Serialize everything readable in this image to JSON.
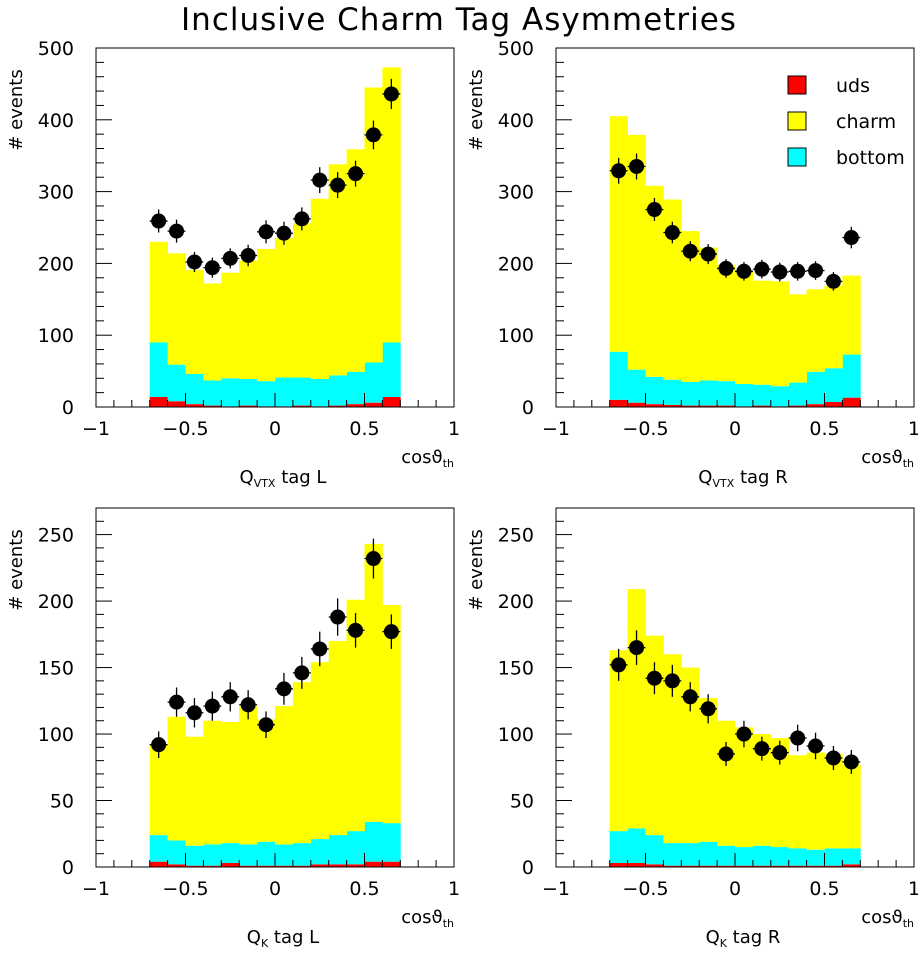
{
  "title": "Inclusive Charm Tag Asymmetries",
  "legend": {
    "items": [
      {
        "label": "uds",
        "color": "#ff0000"
      },
      {
        "label": "charm",
        "color": "#ffff00"
      },
      {
        "label": "bottom",
        "color": "#00ffff"
      }
    ]
  },
  "chart_data": [
    {
      "type": "bar",
      "title": "",
      "xlabel_main": "Q",
      "xlabel_sub": "VTX",
      "xlabel_tail": " tag L",
      "xaxis_label": "cosϑth",
      "ylabel": "# events",
      "xlim": [
        -1,
        1
      ],
      "ylim": [
        0,
        500
      ],
      "x_ticks": [
        "−1",
        "−0.5",
        "0",
        "0.5",
        "1"
      ],
      "y_ticks": [
        "0",
        "100",
        "200",
        "300",
        "400",
        "500"
      ],
      "bin_edges": [
        -0.7,
        -0.6,
        -0.5,
        -0.4,
        -0.3,
        -0.2,
        -0.1,
        0,
        0.1,
        0.2,
        0.3,
        0.4,
        0.5,
        0.6,
        0.7
      ],
      "series": [
        {
          "name": "uds",
          "values": [
            14,
            8,
            4,
            2,
            1,
            2,
            1,
            1,
            2,
            1,
            2,
            4,
            6,
            14
          ]
        },
        {
          "name": "bottom",
          "values": [
            76,
            51,
            42,
            35,
            39,
            37,
            35,
            40,
            39,
            38,
            42,
            45,
            56,
            76
          ]
        },
        {
          "name": "charm",
          "values": [
            140,
            155,
            145,
            135,
            147,
            165,
            184,
            194,
            215,
            251,
            294,
            310,
            383,
            383
          ]
        }
      ],
      "data_points": {
        "x": [
          -0.65,
          -0.55,
          -0.45,
          -0.35,
          -0.25,
          -0.15,
          -0.05,
          0.05,
          0.15,
          0.25,
          0.35,
          0.45,
          0.55,
          0.65
        ],
        "y": [
          259,
          245,
          202,
          194,
          207,
          211,
          244,
          242,
          262,
          316,
          309,
          325,
          379,
          436
        ],
        "err": [
          16,
          16,
          14,
          14,
          14,
          15,
          16,
          16,
          16,
          18,
          18,
          18,
          20,
          21
        ]
      }
    },
    {
      "type": "bar",
      "title": "",
      "xlabel_main": "Q",
      "xlabel_sub": "VTX",
      "xlabel_tail": " tag R",
      "xaxis_label": "cosϑth",
      "ylabel": "# events",
      "xlim": [
        -1,
        1
      ],
      "ylim": [
        0,
        500
      ],
      "x_ticks": [
        "−1",
        "−0.5",
        "0",
        "0.5",
        "1"
      ],
      "y_ticks": [
        "0",
        "100",
        "200",
        "300",
        "400",
        "500"
      ],
      "bin_edges": [
        -0.7,
        -0.6,
        -0.5,
        -0.4,
        -0.3,
        -0.2,
        -0.1,
        0,
        0.1,
        0.2,
        0.3,
        0.4,
        0.5,
        0.6,
        0.7
      ],
      "series": [
        {
          "name": "uds",
          "values": [
            10,
            6,
            4,
            3,
            2,
            2,
            2,
            1,
            2,
            1,
            2,
            4,
            7,
            13
          ]
        },
        {
          "name": "bottom",
          "values": [
            67,
            46,
            38,
            35,
            33,
            35,
            34,
            31,
            29,
            28,
            32,
            45,
            47,
            60
          ]
        },
        {
          "name": "charm",
          "values": [
            328,
            327,
            266,
            251,
            210,
            185,
            162,
            158,
            145,
            146,
            123,
            115,
            115,
            110
          ]
        }
      ],
      "data_points": {
        "x": [
          -0.65,
          -0.55,
          -0.45,
          -0.35,
          -0.25,
          -0.15,
          -0.05,
          0.05,
          0.15,
          0.25,
          0.35,
          0.45,
          0.55,
          0.65
        ],
        "y": [
          329,
          335,
          275,
          243,
          217,
          213,
          193,
          189,
          192,
          188,
          189,
          190,
          175,
          236
        ],
        "err": [
          18,
          18,
          16,
          15,
          14,
          14,
          13,
          13,
          13,
          13,
          13,
          13,
          13,
          15
        ]
      }
    },
    {
      "type": "bar",
      "title": "",
      "xlabel_main": "Q",
      "xlabel_sub": "K",
      "xlabel_tail": " tag L",
      "xaxis_label": "cosϑth",
      "ylabel": "# events",
      "xlim": [
        -1,
        1
      ],
      "ylim": [
        0,
        270
      ],
      "x_ticks": [
        "−1",
        "−0.5",
        "0",
        "0.5",
        "1"
      ],
      "y_ticks": [
        "0",
        "50",
        "100",
        "150",
        "200",
        "250"
      ],
      "bin_edges": [
        -0.7,
        -0.6,
        -0.5,
        -0.4,
        -0.3,
        -0.2,
        -0.1,
        0,
        0.1,
        0.2,
        0.3,
        0.4,
        0.5,
        0.6,
        0.7
      ],
      "series": [
        {
          "name": "uds",
          "values": [
            4,
            2,
            1,
            1,
            3,
            1,
            1,
            1,
            1,
            2,
            2,
            2,
            4,
            4
          ]
        },
        {
          "name": "bottom",
          "values": [
            20,
            18,
            15,
            16,
            15,
            16,
            18,
            16,
            17,
            19,
            22,
            25,
            30,
            29
          ]
        },
        {
          "name": "charm",
          "values": [
            68,
            93,
            82,
            93,
            91,
            104,
            92,
            104,
            121,
            133,
            146,
            174,
            209,
            164
          ]
        }
      ],
      "data_points": {
        "x": [
          -0.65,
          -0.55,
          -0.45,
          -0.35,
          -0.25,
          -0.15,
          -0.05,
          0.05,
          0.15,
          0.25,
          0.35,
          0.45,
          0.55,
          0.65
        ],
        "y": [
          92,
          124,
          116,
          121,
          128,
          122,
          107,
          134,
          146,
          164,
          188,
          178,
          232,
          177
        ],
        "err": [
          10,
          11,
          11,
          11,
          11,
          11,
          10,
          12,
          12,
          13,
          14,
          13,
          15,
          13
        ]
      }
    },
    {
      "type": "bar",
      "title": "",
      "xlabel_main": "Q",
      "xlabel_sub": "K",
      "xlabel_tail": " tag R",
      "xaxis_label": "cosϑth",
      "ylabel": "# events",
      "xlim": [
        -1,
        1
      ],
      "ylim": [
        0,
        270
      ],
      "x_ticks": [
        "−1",
        "−0.5",
        "0",
        "0.5",
        "1"
      ],
      "y_ticks": [
        "0",
        "50",
        "100",
        "150",
        "200",
        "250"
      ],
      "bin_edges": [
        -0.7,
        -0.6,
        -0.5,
        -0.4,
        -0.3,
        -0.2,
        -0.1,
        0,
        0.1,
        0.2,
        0.3,
        0.4,
        0.5,
        0.6,
        0.7
      ],
      "series": [
        {
          "name": "uds",
          "values": [
            3,
            3,
            2,
            1,
            1,
            1,
            1,
            1,
            1,
            1,
            1,
            1,
            1,
            2
          ]
        },
        {
          "name": "bottom",
          "values": [
            24,
            26,
            22,
            17,
            17,
            18,
            15,
            14,
            15,
            14,
            13,
            12,
            13,
            12
          ]
        },
        {
          "name": "charm",
          "values": [
            136,
            180,
            150,
            142,
            132,
            108,
            94,
            90,
            84,
            82,
            70,
            73,
            71,
            63
          ]
        }
      ],
      "data_points": {
        "x": [
          -0.65,
          -0.55,
          -0.45,
          -0.35,
          -0.25,
          -0.15,
          -0.05,
          0.05,
          0.15,
          0.25,
          0.35,
          0.45,
          0.55,
          0.65
        ],
        "y": [
          152,
          165,
          142,
          140,
          128,
          119,
          85,
          100,
          89,
          86,
          97,
          91,
          82,
          79
        ],
        "err": [
          12,
          13,
          12,
          12,
          11,
          11,
          9,
          10,
          9,
          9,
          10,
          10,
          9,
          9
        ]
      }
    }
  ]
}
